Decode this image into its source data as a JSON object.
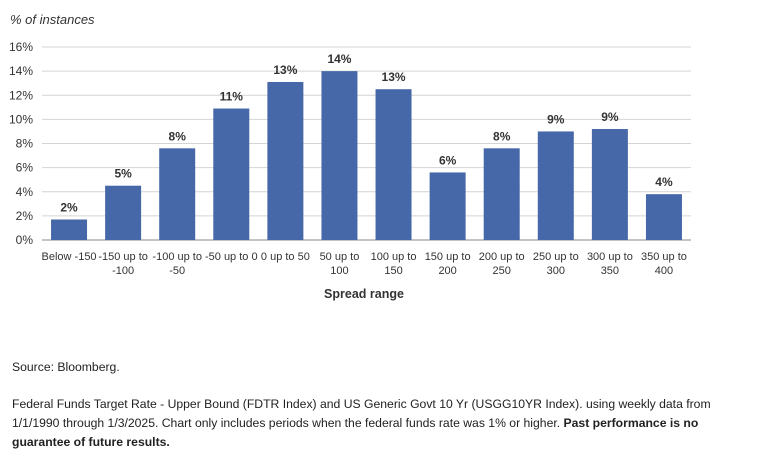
{
  "chart_data": {
    "type": "bar",
    "ylabel": "% of instances",
    "xlabel": "Spread range",
    "ylim": [
      0,
      16
    ],
    "yticks": [
      0,
      2,
      4,
      6,
      8,
      10,
      12,
      14,
      16
    ],
    "ytick_labels": [
      "0%",
      "2%",
      "4%",
      "6%",
      "8%",
      "10%",
      "12%",
      "14%",
      "16%"
    ],
    "grid": true,
    "categories": [
      [
        "Below -150"
      ],
      [
        "-150 up to",
        "-100"
      ],
      [
        "-100 up to",
        "-50"
      ],
      [
        "-50 up to 0"
      ],
      [
        "0 up to 50"
      ],
      [
        "50 up to",
        "100"
      ],
      [
        "100 up to",
        "150"
      ],
      [
        "150 up to",
        "200"
      ],
      [
        "200 up to",
        "250"
      ],
      [
        "250 up to",
        "300"
      ],
      [
        "300 up to",
        "350"
      ],
      [
        "350 up to",
        "400"
      ]
    ],
    "values": [
      1.7,
      4.5,
      7.6,
      10.9,
      13.1,
      14.0,
      12.5,
      5.6,
      7.6,
      9.0,
      9.2,
      3.8
    ],
    "data_labels": [
      "2%",
      "5%",
      "8%",
      "11%",
      "13%",
      "14%",
      "13%",
      "6%",
      "8%",
      "9%",
      "9%",
      "4%"
    ],
    "colors": {
      "bar": "#4768a8"
    }
  },
  "notes": {
    "source": "Source: Bloomberg.",
    "footnote_text": "Federal Funds Target Rate - Upper Bound (FDTR Index) and US Generic Govt 10 Yr (USGG10YR Index). using weekly data from 1/1/1990 through 1/3/2025. Chart only includes periods when the federal funds rate was 1% or higher. ",
    "footnote_bold": "Past performance is no guarantee of future results."
  }
}
